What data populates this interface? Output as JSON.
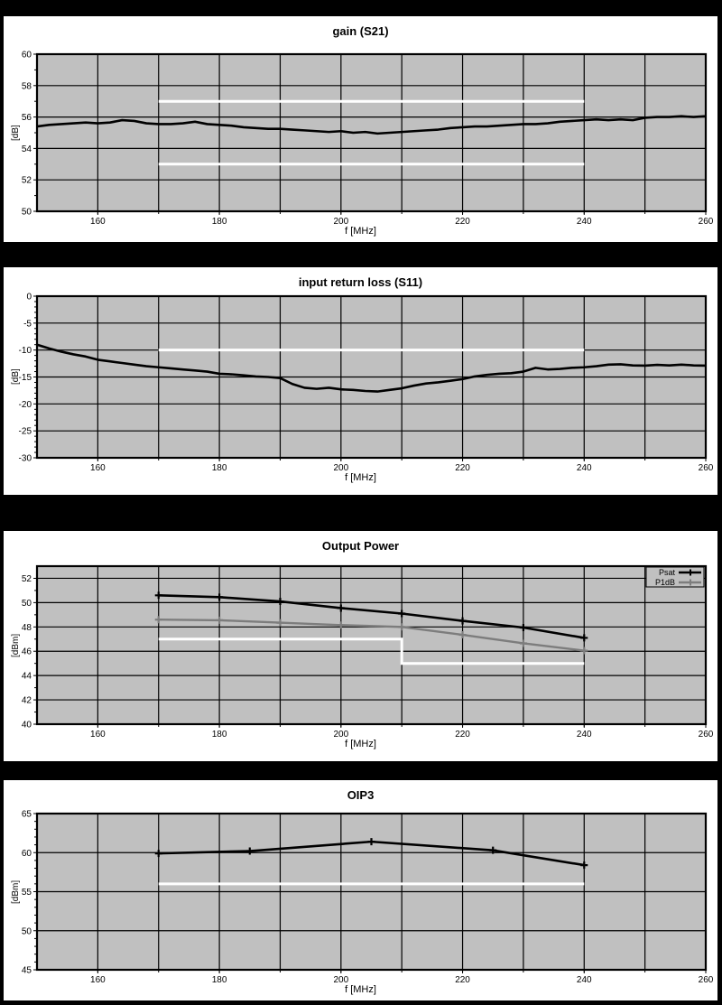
{
  "page": {
    "background": "#000000",
    "panel_background": "#ffffff",
    "plot_background": "#c0c0c0",
    "grid_color": "#000000",
    "limit_color": "#ffffff",
    "text_color": "#000000"
  },
  "chart_data": [
    {
      "id": "gain_s21",
      "type": "line",
      "title": "gain (S21)",
      "xlabel": "f [MHz]",
      "ylabel": "[dB]",
      "xlim": [
        150,
        260
      ],
      "ylim": [
        50,
        60
      ],
      "yticks": [
        50,
        52,
        54,
        56,
        58,
        60
      ],
      "yminor_step": 1,
      "xgrid_step": 10,
      "xticks_labeled": [
        160,
        180,
        200,
        220,
        240,
        260
      ],
      "grid": true,
      "limit_lines": [
        {
          "points": [
            [
              170,
              57
            ],
            [
              240,
              57
            ]
          ]
        },
        {
          "points": [
            [
              170,
              53
            ],
            [
              240,
              53
            ]
          ]
        }
      ],
      "series": [
        {
          "name": "gain",
          "color": "#000000",
          "marker": "none",
          "width": 2.6,
          "points": [
            [
              150,
              55.4
            ],
            [
              152,
              55.5
            ],
            [
              154,
              55.55
            ],
            [
              156,
              55.6
            ],
            [
              158,
              55.65
            ],
            [
              160,
              55.6
            ],
            [
              162,
              55.65
            ],
            [
              164,
              55.8
            ],
            [
              166,
              55.75
            ],
            [
              168,
              55.6
            ],
            [
              170,
              55.55
            ],
            [
              172,
              55.55
            ],
            [
              174,
              55.6
            ],
            [
              176,
              55.7
            ],
            [
              178,
              55.55
            ],
            [
              180,
              55.5
            ],
            [
              182,
              55.45
            ],
            [
              184,
              55.35
            ],
            [
              186,
              55.3
            ],
            [
              188,
              55.25
            ],
            [
              190,
              55.25
            ],
            [
              192,
              55.2
            ],
            [
              194,
              55.15
            ],
            [
              196,
              55.1
            ],
            [
              198,
              55.05
            ],
            [
              200,
              55.1
            ],
            [
              202,
              55.0
            ],
            [
              204,
              55.05
            ],
            [
              206,
              54.95
            ],
            [
              208,
              55.0
            ],
            [
              210,
              55.05
            ],
            [
              212,
              55.1
            ],
            [
              214,
              55.15
            ],
            [
              216,
              55.2
            ],
            [
              218,
              55.3
            ],
            [
              220,
              55.35
            ],
            [
              222,
              55.4
            ],
            [
              224,
              55.4
            ],
            [
              226,
              55.45
            ],
            [
              228,
              55.5
            ],
            [
              230,
              55.55
            ],
            [
              232,
              55.55
            ],
            [
              234,
              55.6
            ],
            [
              236,
              55.7
            ],
            [
              238,
              55.75
            ],
            [
              240,
              55.8
            ],
            [
              242,
              55.85
            ],
            [
              244,
              55.8
            ],
            [
              246,
              55.85
            ],
            [
              248,
              55.8
            ],
            [
              250,
              55.95
            ],
            [
              252,
              56.0
            ],
            [
              254,
              56.0
            ],
            [
              256,
              56.05
            ],
            [
              258,
              56.0
            ],
            [
              260,
              56.05
            ]
          ]
        }
      ]
    },
    {
      "id": "input_return_loss_s11",
      "type": "line",
      "title": "input return loss (S11)",
      "xlabel": "f [MHz]",
      "ylabel": "[dB]",
      "xlim": [
        150,
        260
      ],
      "ylim": [
        -30,
        0
      ],
      "yticks": [
        -30,
        -25,
        -20,
        -15,
        -10,
        -5,
        0
      ],
      "yminor_step": 1,
      "xgrid_step": 10,
      "xticks_labeled": [
        160,
        180,
        200,
        220,
        240,
        260
      ],
      "grid": true,
      "limit_lines": [
        {
          "points": [
            [
              170,
              -10
            ],
            [
              240,
              -10
            ]
          ]
        }
      ],
      "series": [
        {
          "name": "S11",
          "color": "#000000",
          "marker": "none",
          "width": 2.6,
          "points": [
            [
              150,
              -9.0
            ],
            [
              152,
              -9.7
            ],
            [
              154,
              -10.3
            ],
            [
              156,
              -10.8
            ],
            [
              158,
              -11.2
            ],
            [
              160,
              -11.8
            ],
            [
              162,
              -12.1
            ],
            [
              164,
              -12.4
            ],
            [
              166,
              -12.7
            ],
            [
              168,
              -13.0
            ],
            [
              170,
              -13.2
            ],
            [
              172,
              -13.4
            ],
            [
              174,
              -13.6
            ],
            [
              176,
              -13.8
            ],
            [
              178,
              -14.0
            ],
            [
              180,
              -14.4
            ],
            [
              182,
              -14.5
            ],
            [
              184,
              -14.7
            ],
            [
              186,
              -14.9
            ],
            [
              188,
              -15.0
            ],
            [
              190,
              -15.2
            ],
            [
              192,
              -16.3
            ],
            [
              194,
              -17.0
            ],
            [
              196,
              -17.2
            ],
            [
              198,
              -17.0
            ],
            [
              200,
              -17.3
            ],
            [
              202,
              -17.4
            ],
            [
              204,
              -17.6
            ],
            [
              206,
              -17.7
            ],
            [
              208,
              -17.4
            ],
            [
              210,
              -17.1
            ],
            [
              212,
              -16.6
            ],
            [
              214,
              -16.2
            ],
            [
              216,
              -16.0
            ],
            [
              218,
              -15.7
            ],
            [
              220,
              -15.4
            ],
            [
              222,
              -14.9
            ],
            [
              224,
              -14.6
            ],
            [
              226,
              -14.4
            ],
            [
              228,
              -14.3
            ],
            [
              230,
              -14.0
            ],
            [
              232,
              -13.3
            ],
            [
              234,
              -13.6
            ],
            [
              236,
              -13.5
            ],
            [
              238,
              -13.3
            ],
            [
              240,
              -13.2
            ],
            [
              242,
              -13.0
            ],
            [
              244,
              -12.7
            ],
            [
              246,
              -12.65
            ],
            [
              248,
              -12.85
            ],
            [
              250,
              -12.9
            ],
            [
              252,
              -12.75
            ],
            [
              254,
              -12.85
            ],
            [
              256,
              -12.7
            ],
            [
              258,
              -12.85
            ],
            [
              260,
              -12.9
            ]
          ]
        }
      ]
    },
    {
      "id": "output_power",
      "type": "line",
      "title": "Output Power",
      "xlabel": "f [MHz]",
      "ylabel": "[dBm]",
      "xlim": [
        150,
        260
      ],
      "ylim": [
        40,
        53
      ],
      "yticks": [
        40,
        42,
        44,
        46,
        48,
        50,
        52
      ],
      "yminor_step": 1,
      "xgrid_step": 10,
      "xticks_labeled": [
        160,
        180,
        200,
        220,
        240,
        260
      ],
      "grid": true,
      "legend": {
        "position": "top-right",
        "entries": [
          "Psat",
          "P1dB"
        ]
      },
      "limit_lines": [
        {
          "points": [
            [
              170,
              47
            ],
            [
              210,
              47
            ],
            [
              210,
              45
            ],
            [
              240,
              45
            ]
          ]
        }
      ],
      "series": [
        {
          "name": "Psat",
          "color": "#000000",
          "marker": "plus",
          "width": 2.6,
          "points": [
            [
              170,
              50.6
            ],
            [
              180,
              50.45
            ],
            [
              190,
              50.1
            ],
            [
              200,
              49.55
            ],
            [
              210,
              49.1
            ],
            [
              220,
              48.5
            ],
            [
              230,
              47.95
            ],
            [
              240,
              47.1
            ]
          ]
        },
        {
          "name": "P1dB",
          "color": "#7d7d7d",
          "marker": "plus",
          "width": 2.4,
          "points": [
            [
              170,
              48.6
            ],
            [
              180,
              48.55
            ],
            [
              190,
              48.35
            ],
            [
              200,
              48.15
            ],
            [
              210,
              48.0
            ],
            [
              220,
              47.35
            ],
            [
              230,
              46.65
            ],
            [
              240,
              46.05
            ]
          ]
        }
      ]
    },
    {
      "id": "oip3",
      "type": "line",
      "title": "OIP3",
      "xlabel": "f [MHz]",
      "ylabel": "[dBm]",
      "xlim": [
        150,
        260
      ],
      "ylim": [
        45,
        65
      ],
      "yticks": [
        45,
        50,
        55,
        60,
        65
      ],
      "yminor_step": 1,
      "xgrid_step": 10,
      "xticks_labeled": [
        160,
        180,
        200,
        220,
        240,
        260
      ],
      "grid": true,
      "limit_lines": [
        {
          "points": [
            [
              170,
              56
            ],
            [
              240,
              56
            ]
          ]
        }
      ],
      "series": [
        {
          "name": "OIP3",
          "color": "#000000",
          "marker": "plus",
          "width": 2.6,
          "points": [
            [
              170,
              59.9
            ],
            [
              185,
              60.2
            ],
            [
              205,
              61.4
            ],
            [
              225,
              60.3
            ],
            [
              240,
              58.4
            ]
          ]
        }
      ]
    }
  ]
}
